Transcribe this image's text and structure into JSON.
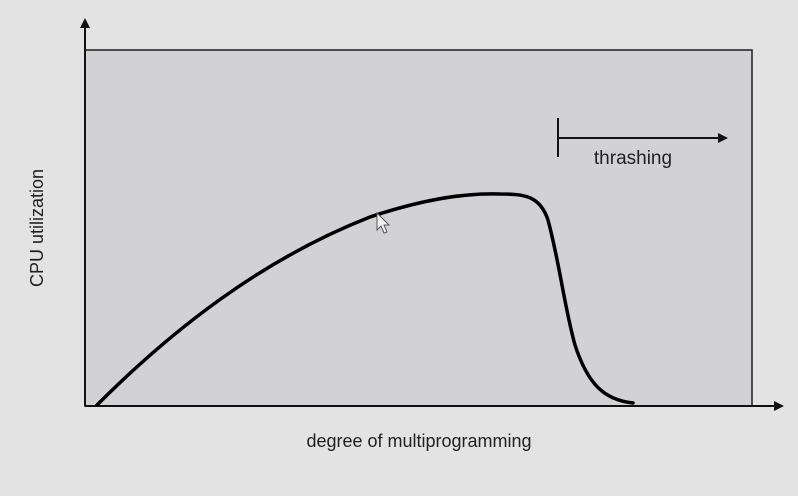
{
  "diagram": {
    "ylabel": "CPU utilization",
    "xlabel": "degree of multiprogramming",
    "annotation": "thrashing"
  },
  "chart_data": {
    "type": "line",
    "ylabel": "CPU utilization",
    "xlabel": "degree of multiprogramming",
    "annotations": [
      "thrashing"
    ],
    "grid": false,
    "colors": {
      "plot_background": "#d2d2d4",
      "page_background": "#e3e3e3",
      "line": "#000000"
    }
  }
}
